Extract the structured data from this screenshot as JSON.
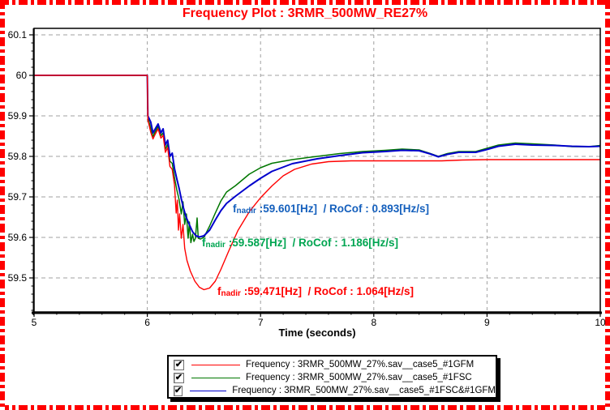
{
  "title": "Frequency Plot : 3RMR_500MW_RE27%",
  "colors": {
    "title": "#ff0000",
    "border": "#ff0000",
    "grid": "#a0a0a0",
    "axis": "#000000"
  },
  "icons": {
    "checkmark": "✔"
  },
  "chart_data": {
    "type": "line",
    "title": "Frequency Plot : 3RMR_500MW_RE27%",
    "xlabel": "Time (seconds)",
    "ylabel": "",
    "xlim": [
      5,
      10
    ],
    "ylim": [
      59.416,
      60.116
    ],
    "grid": true,
    "x_ticks": [
      5,
      6,
      7,
      8,
      9,
      10
    ],
    "y_ticks": [
      {
        "label": "60.1",
        "value": 60.1
      },
      {
        "label": "60",
        "value": 60.0
      },
      {
        "label": "59.9",
        "value": 59.9
      },
      {
        "label": "59.8",
        "value": 59.8
      },
      {
        "label": "59.7",
        "value": 59.7
      },
      {
        "label": "59.6",
        "value": 59.6
      },
      {
        "label": "59.5",
        "value": 59.5
      }
    ],
    "series": [
      {
        "name": "Frequency : 3RMR_500MW_27%.sav__case5_#1FSC",
        "color": "#007700",
        "width": 1.5,
        "nadir_hz": 59.587,
        "rocof_hz_s": 1.186,
        "points": [
          [
            5,
            60
          ],
          [
            6,
            60
          ],
          [
            6.005,
            59.897
          ],
          [
            6.03,
            59.868
          ],
          [
            6.05,
            59.849
          ],
          [
            6.07,
            59.861
          ],
          [
            6.095,
            59.874
          ],
          [
            6.12,
            59.851
          ],
          [
            6.14,
            59.858
          ],
          [
            6.16,
            59.818
          ],
          [
            6.18,
            59.83
          ],
          [
            6.2,
            59.788
          ],
          [
            6.22,
            59.783
          ],
          [
            6.24,
            59.748
          ],
          [
            6.26,
            59.718
          ],
          [
            6.28,
            59.694
          ],
          [
            6.3,
            59.658
          ],
          [
            6.315,
            59.688
          ],
          [
            6.33,
            59.632
          ],
          [
            6.345,
            59.658
          ],
          [
            6.36,
            59.598
          ],
          [
            6.372,
            59.638
          ],
          [
            6.385,
            59.587
          ],
          [
            6.4,
            59.608
          ],
          [
            6.412,
            59.59
          ],
          [
            6.425,
            59.598
          ],
          [
            6.44,
            59.648
          ],
          [
            6.45,
            59.598
          ],
          [
            6.47,
            59.596
          ],
          [
            6.5,
            59.6
          ],
          [
            6.55,
            59.628
          ],
          [
            6.6,
            59.66
          ],
          [
            6.65,
            59.69
          ],
          [
            6.7,
            59.712
          ],
          [
            6.78,
            59.728
          ],
          [
            6.9,
            59.756
          ],
          [
            7,
            59.772
          ],
          [
            7.1,
            59.783
          ],
          [
            7.28,
            59.792
          ],
          [
            7.5,
            59.8
          ],
          [
            7.7,
            59.807
          ],
          [
            7.9,
            59.812
          ],
          [
            8.1,
            59.815
          ],
          [
            8.25,
            59.818
          ],
          [
            8.4,
            59.816
          ],
          [
            8.5,
            59.807
          ],
          [
            8.57,
            59.8
          ],
          [
            8.65,
            59.807
          ],
          [
            8.75,
            59.812
          ],
          [
            8.9,
            59.812
          ],
          [
            9,
            59.82
          ],
          [
            9.1,
            59.828
          ],
          [
            9.25,
            59.833
          ],
          [
            9.4,
            59.831
          ],
          [
            9.6,
            59.828
          ],
          [
            9.75,
            59.824
          ],
          [
            9.9,
            59.824
          ],
          [
            10,
            59.827
          ]
        ]
      },
      {
        "name": "Frequency : 3RMR_500MW_27%.sav__case5_#1FSC&#1GFM",
        "color": "#0000cc",
        "width": 2,
        "nadir_hz": 59.601,
        "rocof_hz_s": 0.893,
        "points": [
          [
            5,
            60
          ],
          [
            6,
            60
          ],
          [
            6.005,
            59.9
          ],
          [
            6.03,
            59.885
          ],
          [
            6.05,
            59.858
          ],
          [
            6.07,
            59.868
          ],
          [
            6.095,
            59.88
          ],
          [
            6.12,
            59.858
          ],
          [
            6.14,
            59.868
          ],
          [
            6.16,
            59.828
          ],
          [
            6.18,
            59.84
          ],
          [
            6.2,
            59.8
          ],
          [
            6.22,
            59.808
          ],
          [
            6.24,
            59.77
          ],
          [
            6.26,
            59.745
          ],
          [
            6.28,
            59.722
          ],
          [
            6.3,
            59.695
          ],
          [
            6.32,
            59.672
          ],
          [
            6.34,
            59.652
          ],
          [
            6.37,
            59.632
          ],
          [
            6.4,
            59.614
          ],
          [
            6.43,
            59.604
          ],
          [
            6.46,
            59.601
          ],
          [
            6.5,
            59.604
          ],
          [
            6.55,
            59.618
          ],
          [
            6.6,
            59.643
          ],
          [
            6.65,
            59.666
          ],
          [
            6.7,
            59.684
          ],
          [
            6.78,
            59.702
          ],
          [
            6.9,
            59.727
          ],
          [
            7,
            59.746
          ],
          [
            7.1,
            59.763
          ],
          [
            7.28,
            59.782
          ],
          [
            7.5,
            59.794
          ],
          [
            7.7,
            59.802
          ],
          [
            7.9,
            59.809
          ],
          [
            8.1,
            59.812
          ],
          [
            8.25,
            59.815
          ],
          [
            8.4,
            59.814
          ],
          [
            8.5,
            59.806
          ],
          [
            8.57,
            59.799
          ],
          [
            8.65,
            59.805
          ],
          [
            8.75,
            59.81
          ],
          [
            8.9,
            59.81
          ],
          [
            9,
            59.817
          ],
          [
            9.1,
            59.825
          ],
          [
            9.25,
            59.83
          ],
          [
            9.4,
            59.828
          ],
          [
            9.6,
            59.827
          ],
          [
            9.75,
            59.825
          ],
          [
            9.9,
            59.824
          ],
          [
            10,
            59.825
          ]
        ]
      },
      {
        "name": "Frequency : 3RMR_500MW_27%.sav__case5_#1GFM",
        "color": "#ff0000",
        "width": 1.4,
        "nadir_hz": 59.471,
        "rocof_hz_s": 1.064,
        "points": [
          [
            5,
            60
          ],
          [
            6,
            60
          ],
          [
            6.005,
            59.89
          ],
          [
            6.03,
            59.86
          ],
          [
            6.05,
            59.843
          ],
          [
            6.07,
            59.855
          ],
          [
            6.095,
            59.868
          ],
          [
            6.12,
            59.845
          ],
          [
            6.14,
            59.852
          ],
          [
            6.16,
            59.81
          ],
          [
            6.18,
            59.822
          ],
          [
            6.2,
            59.775
          ],
          [
            6.22,
            59.768
          ],
          [
            6.24,
            59.73
          ],
          [
            6.255,
            59.66
          ],
          [
            6.265,
            59.692
          ],
          [
            6.275,
            59.618
          ],
          [
            6.285,
            59.658
          ],
          [
            6.3,
            59.598
          ],
          [
            6.315,
            59.632
          ],
          [
            6.33,
            59.573
          ],
          [
            6.35,
            59.543
          ],
          [
            6.38,
            59.517
          ],
          [
            6.42,
            59.492
          ],
          [
            6.46,
            59.477
          ],
          [
            6.5,
            59.471
          ],
          [
            6.55,
            59.475
          ],
          [
            6.6,
            59.492
          ],
          [
            6.65,
            59.521
          ],
          [
            6.72,
            59.567
          ],
          [
            6.8,
            59.617
          ],
          [
            6.9,
            59.663
          ],
          [
            7,
            59.698
          ],
          [
            7.1,
            59.727
          ],
          [
            7.2,
            59.752
          ],
          [
            7.3,
            59.768
          ],
          [
            7.45,
            59.781
          ],
          [
            7.6,
            59.787
          ],
          [
            7.8,
            59.789
          ],
          [
            8.2,
            59.789
          ],
          [
            8.6,
            59.789
          ],
          [
            8.78,
            59.791
          ],
          [
            9,
            59.792
          ],
          [
            9.5,
            59.792
          ],
          [
            10,
            59.792
          ]
        ]
      }
    ],
    "annotations": [
      {
        "prefix": "f",
        "sub": "nadir",
        "text": " :59.601[Hz]  / RoCof : 0.893[Hz/s]",
        "color": "#1560bd",
        "px": [
          287,
          250
        ]
      },
      {
        "prefix": "f",
        "sub": "nadir",
        "text": " :59.587[Hz]  / RoCof : 1.186[Hz/s]",
        "color": "#00a551",
        "px": [
          249,
          292
        ]
      },
      {
        "prefix": "f",
        "sub": "nadir",
        "text": " :59.471[Hz]  / RoCof : 1.064[Hz/s]",
        "color": "#ff0000",
        "px": [
          268,
          352
        ]
      }
    ]
  },
  "legend": {
    "items": [
      {
        "checked": true,
        "color": "#ff0000",
        "label": "Frequency : 3RMR_500MW_27%.sav__case5_#1GFM"
      },
      {
        "checked": true,
        "color": "#007700",
        "label": "Frequency : 3RMR_500MW_27%.sav__case5_#1FSC"
      },
      {
        "checked": true,
        "color": "#0000cc",
        "label": "Frequency : 3RMR_500MW_27%.sav__case5_#1FSC&#1GFM"
      }
    ]
  }
}
